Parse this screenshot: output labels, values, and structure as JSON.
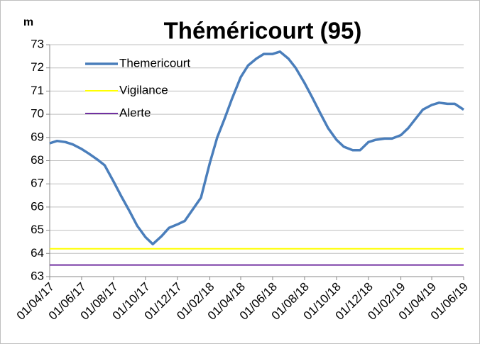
{
  "chart_data": {
    "type": "line",
    "title": "Théméricourt (95)",
    "y_label": "m",
    "x": [
      "2017-04-01",
      "2017-04-15",
      "2017-05-01",
      "2017-05-15",
      "2017-06-01",
      "2017-06-15",
      "2017-07-01",
      "2017-07-15",
      "2017-08-01",
      "2017-08-15",
      "2017-09-01",
      "2017-09-15",
      "2017-10-01",
      "2017-10-15",
      "2017-11-01",
      "2017-11-15",
      "2017-12-01",
      "2017-12-15",
      "2018-01-01",
      "2018-01-15",
      "2018-02-01",
      "2018-02-15",
      "2018-03-01",
      "2018-03-15",
      "2018-04-01",
      "2018-04-15",
      "2018-05-01",
      "2018-05-15",
      "2018-06-01",
      "2018-06-15",
      "2018-07-01",
      "2018-07-15",
      "2018-08-01",
      "2018-08-15",
      "2018-09-01",
      "2018-09-15",
      "2018-10-01",
      "2018-10-15",
      "2018-11-01",
      "2018-11-15",
      "2018-12-01",
      "2018-12-15",
      "2019-01-01",
      "2019-01-15",
      "2019-02-01",
      "2019-02-15",
      "2019-03-01",
      "2019-03-15",
      "2019-04-01",
      "2019-04-15",
      "2019-05-01",
      "2019-05-15",
      "2019-06-01"
    ],
    "series": [
      {
        "name": "Themericourt",
        "color": "#4a7ebb",
        "values": [
          68.75,
          68.85,
          68.8,
          68.7,
          68.5,
          68.3,
          68.05,
          67.8,
          67.1,
          66.5,
          65.8,
          65.2,
          64.7,
          64.4,
          64.75,
          65.1,
          65.25,
          65.4,
          65.95,
          66.4,
          67.9,
          69.0,
          69.8,
          70.65,
          71.6,
          72.1,
          72.4,
          72.6,
          72.6,
          72.7,
          72.4,
          72.0,
          71.35,
          70.75,
          70.0,
          69.4,
          68.9,
          68.6,
          68.45,
          68.45,
          68.8,
          68.9,
          68.95,
          68.95,
          69.1,
          69.4,
          69.8,
          70.2,
          70.4,
          70.5,
          70.45,
          70.45,
          70.2
        ]
      },
      {
        "name": "Vigilance",
        "color": "#ffff00",
        "x": [
          "2017-04-01",
          "2019-06-01"
        ],
        "values": [
          64.2,
          64.2
        ]
      },
      {
        "name": "Alerte",
        "color": "#7030a0",
        "x": [
          "2017-04-01",
          "2019-06-01"
        ],
        "values": [
          63.5,
          63.5
        ]
      }
    ],
    "xlim": [
      "2017-04-01",
      "2019-06-01"
    ],
    "xticks": [
      {
        "value": "2017-04-01",
        "label": "01/04/17"
      },
      {
        "value": "2017-06-01",
        "label": "01/06/17"
      },
      {
        "value": "2017-08-01",
        "label": "01/08/17"
      },
      {
        "value": "2017-10-01",
        "label": "01/10/17"
      },
      {
        "value": "2017-12-01",
        "label": "01/12/17"
      },
      {
        "value": "2018-02-01",
        "label": "01/02/18"
      },
      {
        "value": "2018-04-01",
        "label": "01/04/18"
      },
      {
        "value": "2018-06-01",
        "label": "01/06/18"
      },
      {
        "value": "2018-08-01",
        "label": "01/08/18"
      },
      {
        "value": "2018-10-01",
        "label": "01/10/18"
      },
      {
        "value": "2018-12-01",
        "label": "01/12/18"
      },
      {
        "value": "2019-02-01",
        "label": "01/02/19"
      },
      {
        "value": "2019-04-01",
        "label": "01/04/19"
      },
      {
        "value": "2019-06-01",
        "label": "01/06/19"
      }
    ],
    "ylim": [
      63,
      73
    ],
    "yticks": [
      63,
      64,
      65,
      66,
      67,
      68,
      69,
      70,
      71,
      72,
      73
    ],
    "grid": true,
    "legend": "upper left"
  }
}
